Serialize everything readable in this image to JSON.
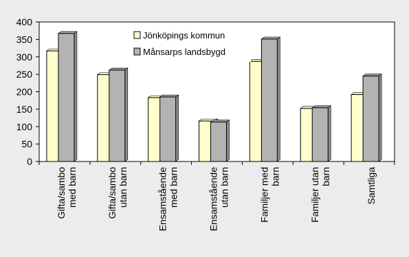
{
  "chart_data": {
    "type": "bar",
    "categories": [
      [
        "Gifta/sambo",
        "med barn"
      ],
      [
        "Gifta/sambo",
        "utan barn"
      ],
      [
        "Ensamstående",
        "med barn"
      ],
      [
        "Ensamstående",
        "utan barn"
      ],
      [
        "Familjer med",
        "barn"
      ],
      [
        "Familjer utan",
        "barn"
      ],
      [
        "Samtliga"
      ]
    ],
    "series": [
      {
        "name": "Jönköpings kommun",
        "values": [
          317,
          249,
          183,
          116,
          287,
          152,
          192
        ],
        "color": "#ffffcc"
      },
      {
        "name": "Månsarps landsbygd",
        "values": [
          367,
          262,
          185,
          113,
          351,
          154,
          245
        ],
        "color": "#b3b3b3"
      }
    ],
    "yticks": [
      0,
      50,
      100,
      150,
      200,
      250,
      300,
      350,
      400
    ],
    "ylim": [
      0,
      400
    ],
    "title": "",
    "xlabel": "",
    "ylabel": "",
    "grid": false,
    "legend": "top-center",
    "background": "#ececec",
    "plot_background": "#ffffff"
  }
}
